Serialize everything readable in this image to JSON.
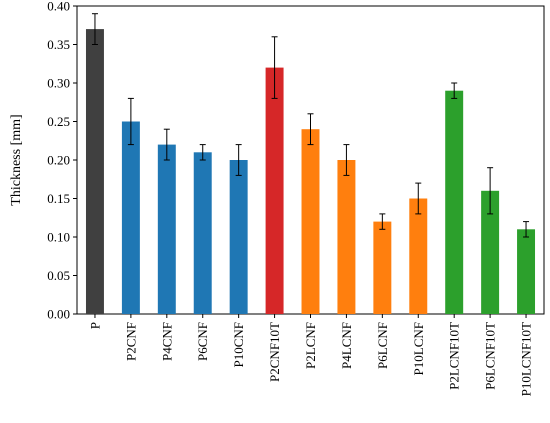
{
  "chart_data": {
    "type": "bar",
    "title": "",
    "xlabel": "",
    "ylabel": "Thickness [mm]",
    "ylim": [
      0,
      0.4
    ],
    "yticks": [
      "0.00",
      "0.05",
      "0.10",
      "0.15",
      "0.20",
      "0.25",
      "0.30",
      "0.35",
      "0.40"
    ],
    "grid": false,
    "categories": [
      "P",
      "P2CNF",
      "P4CNF",
      "P6CNF",
      "P10CNF",
      "P2CNF10T",
      "P2LCNF",
      "P4LCNF",
      "P6LCNF",
      "P10LCNF",
      "P2LCNF10T",
      "P6LCNF10T",
      "P10LCNF10T"
    ],
    "values": [
      0.37,
      0.25,
      0.22,
      0.21,
      0.2,
      0.32,
      0.24,
      0.2,
      0.12,
      0.15,
      0.29,
      0.16,
      0.11
    ],
    "errors": [
      0.02,
      0.03,
      0.02,
      0.01,
      0.02,
      0.04,
      0.02,
      0.02,
      0.01,
      0.02,
      0.01,
      0.03,
      0.01
    ],
    "bar_colors": [
      "#404040",
      "#1f77b4",
      "#1f77b4",
      "#1f77b4",
      "#1f77b4",
      "#d62728",
      "#ff7f0e",
      "#ff7f0e",
      "#ff7f0e",
      "#ff7f0e",
      "#2ca02c",
      "#2ca02c",
      "#2ca02c"
    ]
  }
}
